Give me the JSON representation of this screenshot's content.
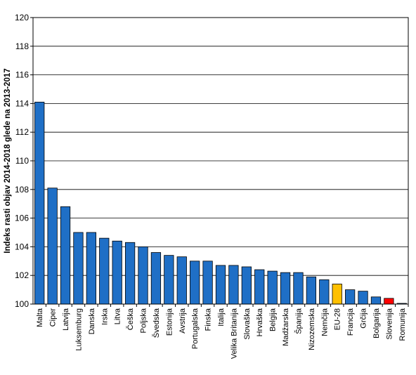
{
  "chart_data": {
    "type": "bar",
    "title": "",
    "xlabel": "",
    "ylabel": "Indeks rasti objav 2014-2018 glede na 2013-2017",
    "ylim": [
      100,
      120
    ],
    "ytick_step": 2,
    "grid": true,
    "categories": [
      "Malta",
      "Ciper",
      "Latvija",
      "Luksemburg",
      "Danska",
      "Irska",
      "Litva",
      "Češka",
      "Poljska",
      "Švedska",
      "Estonija",
      "Avstrija",
      "Portugalska",
      "Finska",
      "Italija",
      "Velika Britanija",
      "Slovaška",
      "Hrvaška",
      "Belgija",
      "Madžarska",
      "Španija",
      "Nizozemska",
      "Nemčija",
      "EU-28",
      "Francija",
      "Grčija",
      "Bolgarija",
      "Slovenija",
      "Romunija"
    ],
    "values": [
      114.1,
      108.1,
      106.8,
      105.0,
      105.0,
      104.6,
      104.4,
      104.3,
      104.0,
      103.6,
      103.4,
      103.3,
      103.0,
      103.0,
      102.7,
      102.7,
      102.6,
      102.4,
      102.3,
      102.2,
      102.2,
      101.9,
      101.7,
      101.4,
      101.0,
      100.9,
      100.5,
      100.4,
      100.05
    ],
    "colors": {
      "default": "#1f6fc6",
      "highlight": {
        "EU-28": "#ffc000",
        "Slovenija": "#ff0000"
      }
    }
  }
}
